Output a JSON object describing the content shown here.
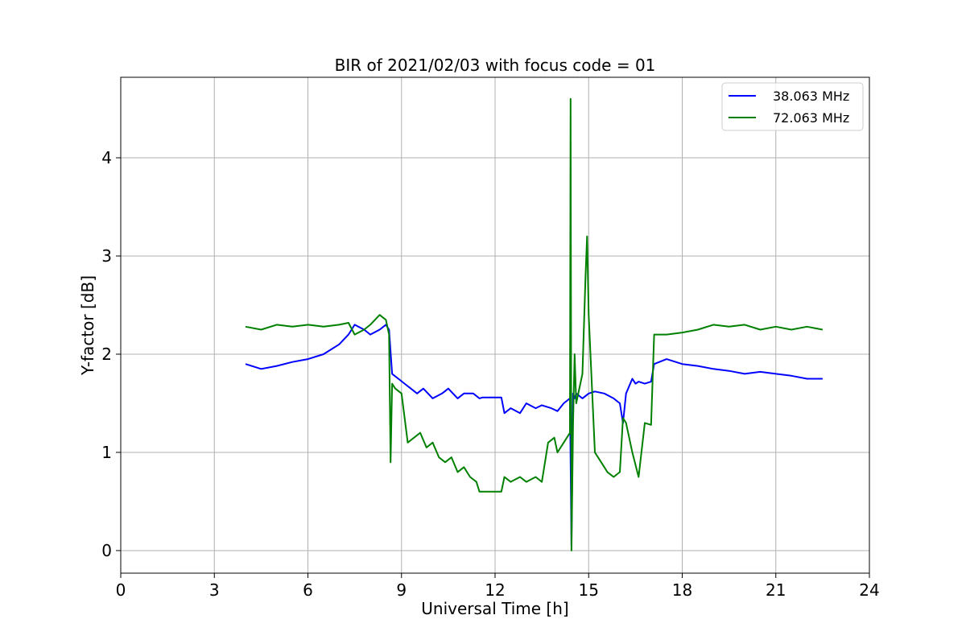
{
  "chart_data": {
    "type": "line",
    "title": "BIR of 2021/02/03 with focus code = 01",
    "xlabel": "Universal Time [h]",
    "ylabel": "Y-factor [dB]",
    "xlim": [
      0,
      24
    ],
    "ylim": [
      -0.23,
      4.82
    ],
    "xticks": [
      0,
      3,
      6,
      9,
      12,
      15,
      18,
      21,
      24
    ],
    "yticks": [
      0,
      1,
      2,
      3,
      4
    ],
    "grid": true,
    "legend_position": "top-right",
    "series": [
      {
        "name": "38.063 MHz",
        "color": "#0000ff",
        "x": [
          4.0,
          4.5,
          5.0,
          5.5,
          6.0,
          6.5,
          7.0,
          7.3,
          7.5,
          7.8,
          8.0,
          8.3,
          8.5,
          8.6,
          8.7,
          8.9,
          9.1,
          9.3,
          9.5,
          9.7,
          10.0,
          10.3,
          10.5,
          10.8,
          11.0,
          11.3,
          11.5,
          11.6,
          12.0,
          12.2,
          12.3,
          12.5,
          12.8,
          13.0,
          13.3,
          13.5,
          13.8,
          14.0,
          14.2,
          14.4,
          14.45,
          14.5,
          14.55,
          14.6,
          14.8,
          15.0,
          15.2,
          15.5,
          15.8,
          16.0,
          16.1,
          16.2,
          16.4,
          16.5,
          16.6,
          16.8,
          17.0,
          17.1,
          17.5,
          18.0,
          18.5,
          19.0,
          19.5,
          20.0,
          20.5,
          21.0,
          21.5,
          22.0,
          22.5
        ],
        "y": [
          1.9,
          1.85,
          1.88,
          1.92,
          1.95,
          2.0,
          2.1,
          2.2,
          2.3,
          2.25,
          2.2,
          2.25,
          2.3,
          2.25,
          1.8,
          1.75,
          1.7,
          1.65,
          1.6,
          1.65,
          1.55,
          1.6,
          1.65,
          1.55,
          1.6,
          1.6,
          1.55,
          1.56,
          1.56,
          1.56,
          1.4,
          1.45,
          1.4,
          1.5,
          1.45,
          1.48,
          1.45,
          1.42,
          1.5,
          1.55,
          0.05,
          1.6,
          1.55,
          1.6,
          1.55,
          1.6,
          1.62,
          1.6,
          1.55,
          1.5,
          1.3,
          1.6,
          1.75,
          1.7,
          1.72,
          1.7,
          1.72,
          1.9,
          1.95,
          1.9,
          1.88,
          1.85,
          1.83,
          1.8,
          1.82,
          1.8,
          1.78,
          1.75,
          1.75
        ]
      },
      {
        "name": "72.063 MHz",
        "color": "#008000",
        "x": [
          4.0,
          4.5,
          5.0,
          5.5,
          6.0,
          6.5,
          7.0,
          7.3,
          7.5,
          7.8,
          8.0,
          8.3,
          8.5,
          8.6,
          8.65,
          8.7,
          8.8,
          9.0,
          9.2,
          9.4,
          9.6,
          9.8,
          10.0,
          10.2,
          10.4,
          10.6,
          10.8,
          11.0,
          11.2,
          11.4,
          11.5,
          11.8,
          12.0,
          12.2,
          12.3,
          12.5,
          12.8,
          13.0,
          13.3,
          13.5,
          13.7,
          13.9,
          14.0,
          14.2,
          14.4,
          14.42,
          14.45,
          14.5,
          14.55,
          14.6,
          14.8,
          14.9,
          14.95,
          15.0,
          15.2,
          15.4,
          15.6,
          15.8,
          16.0,
          16.1,
          16.2,
          16.4,
          16.6,
          16.8,
          17.0,
          17.1,
          17.5,
          18.0,
          18.5,
          19.0,
          19.5,
          20.0,
          20.5,
          21.0,
          21.5,
          22.0,
          22.5
        ],
        "y": [
          2.28,
          2.25,
          2.3,
          2.28,
          2.3,
          2.28,
          2.3,
          2.32,
          2.2,
          2.25,
          2.3,
          2.4,
          2.35,
          2.2,
          0.9,
          1.7,
          1.65,
          1.6,
          1.1,
          1.15,
          1.2,
          1.05,
          1.1,
          0.95,
          0.9,
          0.95,
          0.8,
          0.85,
          0.75,
          0.7,
          0.6,
          0.6,
          0.6,
          0.6,
          0.75,
          0.7,
          0.75,
          0.7,
          0.75,
          0.7,
          1.1,
          1.15,
          1.0,
          1.1,
          1.2,
          4.6,
          0.0,
          1.3,
          2.0,
          1.5,
          1.8,
          2.8,
          3.2,
          2.4,
          1.0,
          0.9,
          0.8,
          0.75,
          0.8,
          1.35,
          1.3,
          1.0,
          0.75,
          1.3,
          1.28,
          2.2,
          2.2,
          2.22,
          2.25,
          2.3,
          2.28,
          2.3,
          2.25,
          2.28,
          2.25,
          2.28,
          2.25
        ]
      }
    ]
  }
}
